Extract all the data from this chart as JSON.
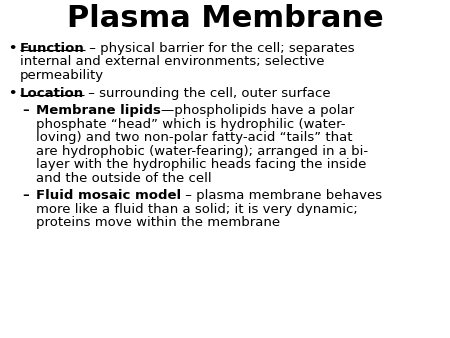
{
  "title": "Plasma Membrane",
  "background_color": "#ffffff",
  "text_color": "#000000",
  "title_fontsize": 22,
  "body_fontsize": 9.5,
  "font_family": "DejaVu Sans",
  "content": [
    {
      "type": "bullet",
      "bold": "Function",
      "normal": " – physical barrier for the cell; separates internal and external environments; selective permeability"
    },
    {
      "type": "bullet",
      "bold": "Location",
      "normal": " – surrounding the cell, outer surface"
    },
    {
      "type": "sub",
      "bold": "Membrane lipids",
      "normal": "—phospholipids have a polar phosphate “head” which is hydrophilic (water-loving) and two non-polar fatty-acid “tails” that are hydrophobic (water-fearing); arranged in a bi-layer with the hydrophilic heads facing the inside and the outside of the cell"
    },
    {
      "type": "sub",
      "bold": "Fluid mosaic model",
      "normal": " – plasma membrane behaves more like a fluid than a solid; it is very dynamic; proteins move within the membrane"
    }
  ]
}
